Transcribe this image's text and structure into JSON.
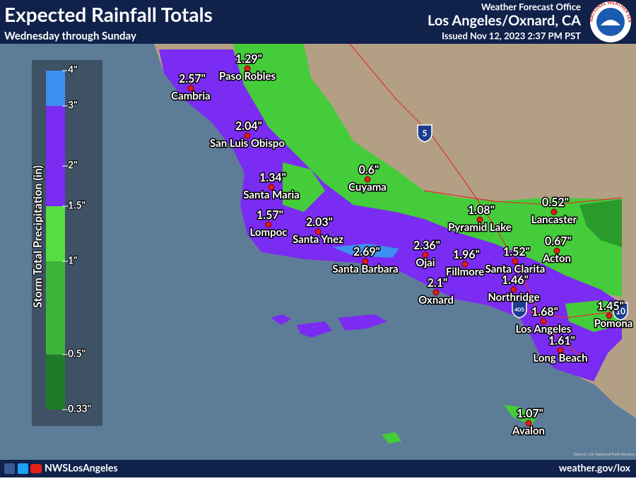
{
  "header": {
    "title": "Expected Rainfall Totals",
    "subtitle": "Wednesday through Sunday",
    "office": "Weather Forecast Office",
    "location": "Los Angeles/Oxnard, CA",
    "issued": "Issued Nov 12, 2023 2:37 PM PST"
  },
  "logo": "NATIONAL WEATHER SERVICE",
  "legend": {
    "title": "Storm Total Precipitation (in)",
    "ticks": [
      "4\"",
      "3\"",
      "2\"",
      "1.5\"",
      "1\"",
      "0.5\"",
      "0.33\""
    ]
  },
  "stations": [
    {
      "name": "Paso Robles",
      "value": "1.29\""
    },
    {
      "name": "Cambria",
      "value": "2.57\""
    },
    {
      "name": "San Luis Obispo",
      "value": "2.04\""
    },
    {
      "name": "Santa Maria",
      "value": "1.34\""
    },
    {
      "name": "Cuyama",
      "value": "0.6\""
    },
    {
      "name": "Lompoc",
      "value": "1.57\""
    },
    {
      "name": "Santa Ynez",
      "value": "2.03\""
    },
    {
      "name": "Santa Barbara",
      "value": "2.69\""
    },
    {
      "name": "Ojai",
      "value": "2.36\""
    },
    {
      "name": "Fillmore",
      "value": "1.96\""
    },
    {
      "name": "Oxnard",
      "value": "2.1\""
    },
    {
      "name": "Pyramid Lake",
      "value": "1.08\""
    },
    {
      "name": "Lancaster",
      "value": "0.52\""
    },
    {
      "name": "Acton",
      "value": "0.67\""
    },
    {
      "name": "Santa Clarita",
      "value": "1.52\""
    },
    {
      "name": "Northridge",
      "value": "1.46\""
    },
    {
      "name": "Los Angeles",
      "value": "1.68\""
    },
    {
      "name": "Pomona",
      "value": "1.45\""
    },
    {
      "name": "Long Beach",
      "value": "1.61\""
    },
    {
      "name": "Avalon",
      "value": "1.07\""
    }
  ],
  "highways": [
    "5",
    "405",
    "10"
  ],
  "source": "Source: US National Park Service",
  "footer": {
    "social": "NWSLosAngeles",
    "url": "weather.gov/lox"
  }
}
